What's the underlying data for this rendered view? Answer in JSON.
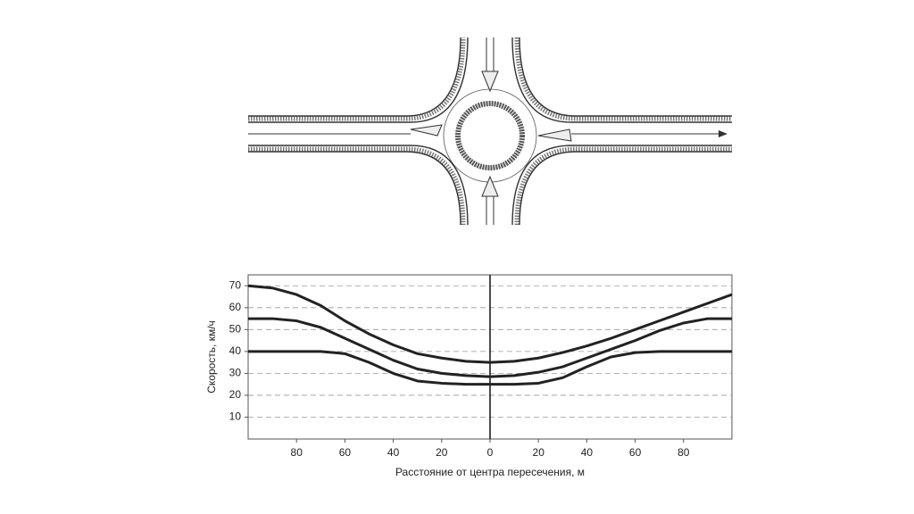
{
  "chart_data": {
    "type": "line",
    "xlabel": "Расстояние от центра пересечения, м",
    "ylabel": "Скорость, км/ч",
    "x": [
      -100,
      -90,
      -80,
      -70,
      -60,
      -50,
      -40,
      -30,
      -20,
      -10,
      0,
      10,
      20,
      30,
      40,
      50,
      60,
      70,
      80,
      90,
      100
    ],
    "series": [
      {
        "color": "#222222",
        "values": [
          70,
          69,
          66,
          61,
          54,
          48,
          43,
          39,
          37,
          35.5,
          35,
          35.5,
          37,
          39.5,
          42.5,
          46,
          50,
          54,
          58,
          62,
          66
        ]
      },
      {
        "color": "#222222",
        "values": [
          55,
          55,
          54,
          51,
          46,
          41,
          36,
          32,
          30,
          29,
          28.5,
          29,
          30.5,
          33,
          37,
          41,
          45,
          49.5,
          53,
          55,
          55
        ]
      },
      {
        "color": "#222222",
        "values": [
          40,
          40,
          40,
          40,
          39,
          35,
          30,
          26.5,
          25.5,
          25,
          25,
          25,
          25.5,
          28,
          33,
          37.5,
          39.5,
          40,
          40,
          40,
          40
        ]
      }
    ],
    "xlim": [
      -100,
      100
    ],
    "xticks": [
      {
        "value": -80,
        "label": "80"
      },
      {
        "value": -60,
        "label": "60"
      },
      {
        "value": -40,
        "label": "40"
      },
      {
        "value": -20,
        "label": "20"
      },
      0,
      20,
      40,
      60,
      80
    ],
    "ylim": [
      0,
      75
    ],
    "yticks": [
      10,
      20,
      30,
      40,
      50,
      60,
      70
    ],
    "grid": true
  }
}
